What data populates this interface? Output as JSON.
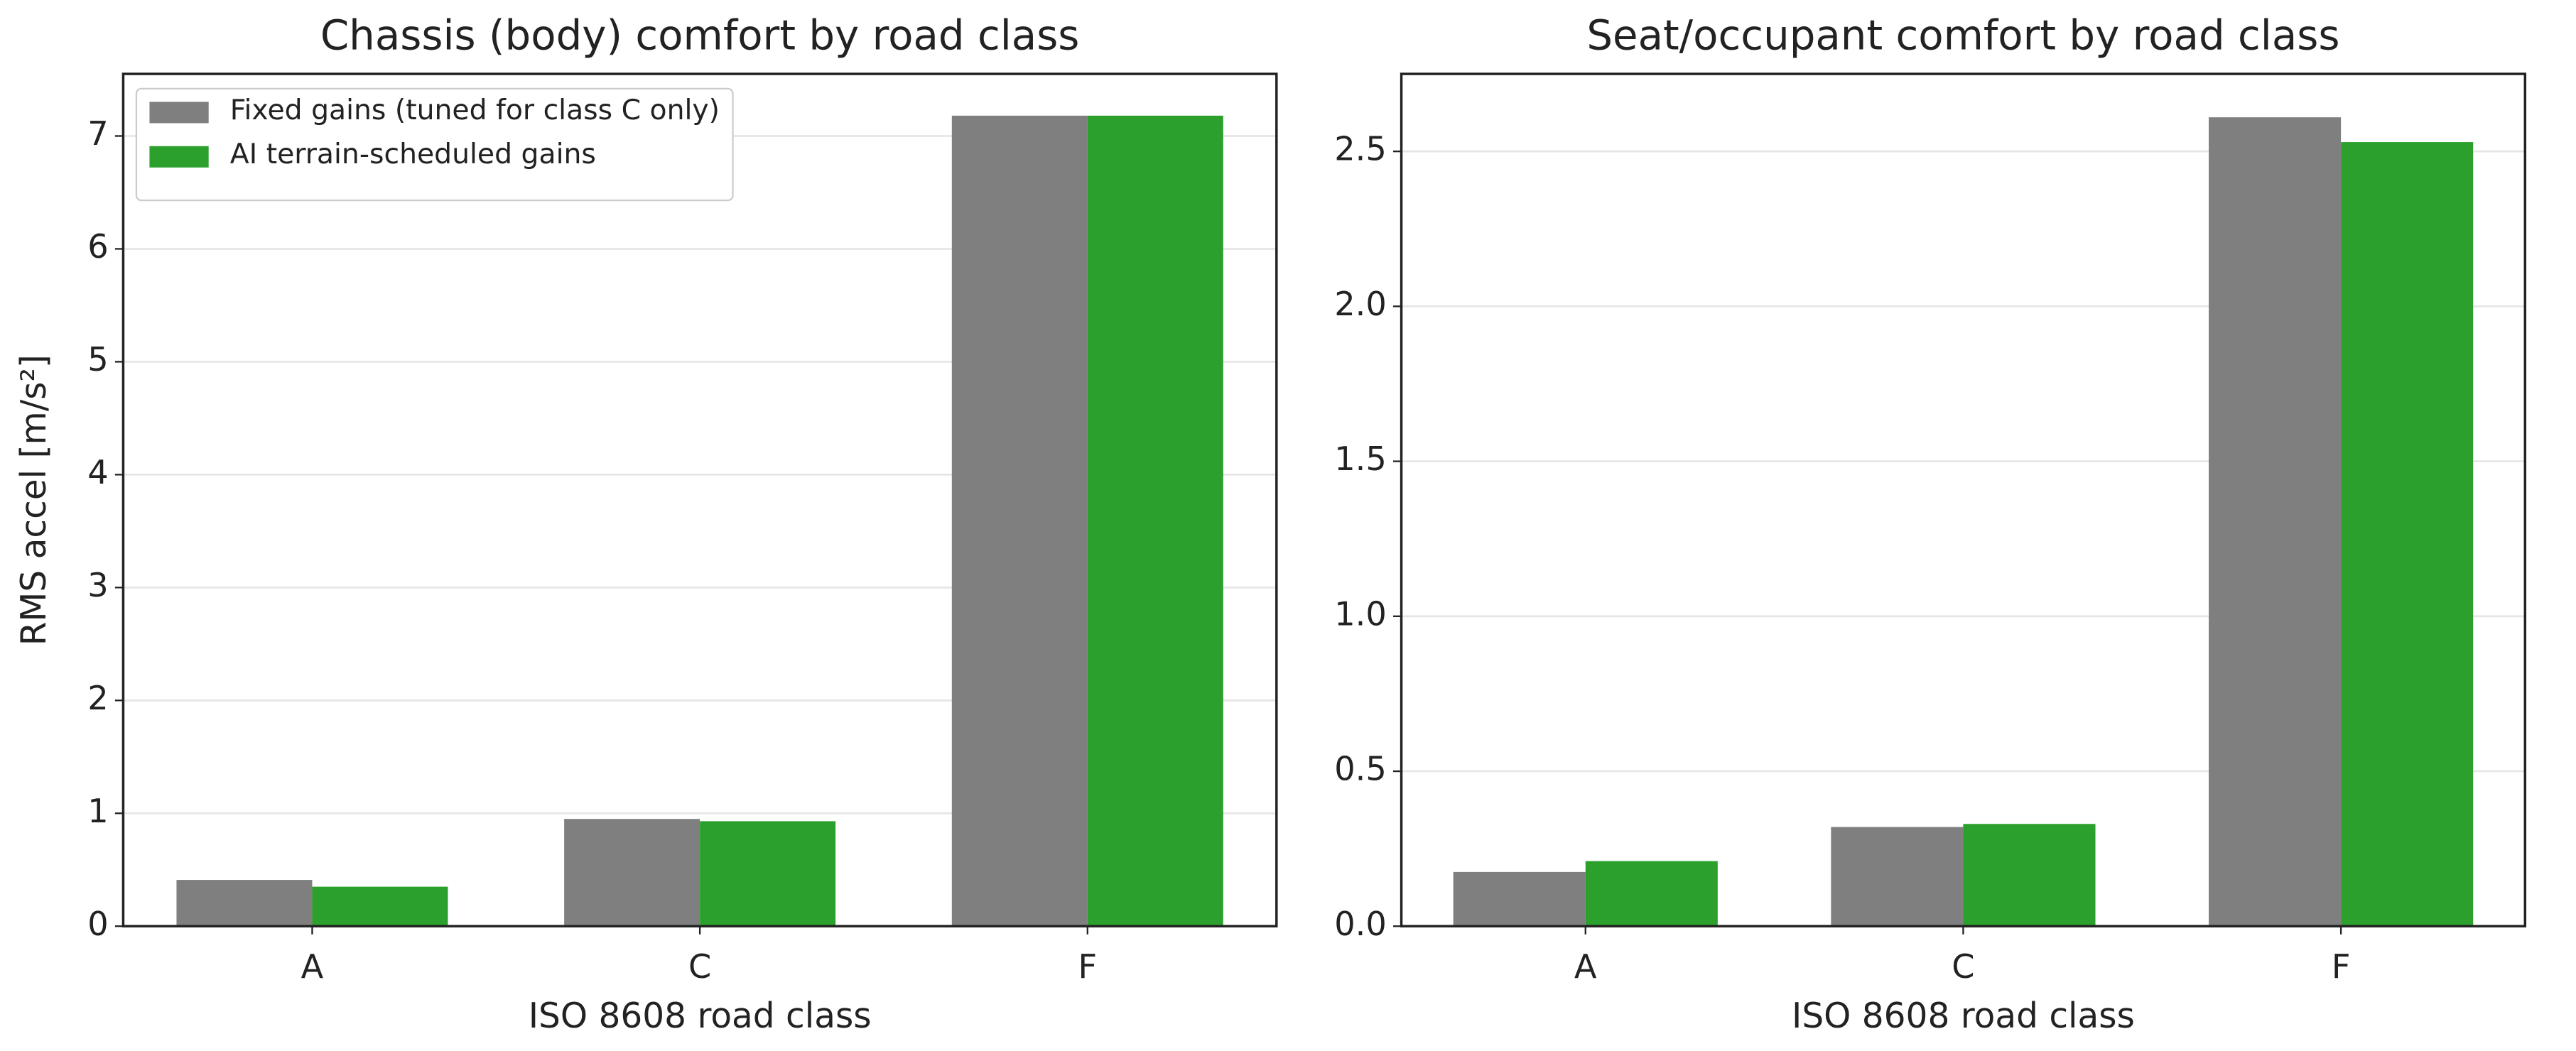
{
  "chart_data": [
    {
      "type": "bar",
      "title": "Chassis (body) comfort by road class",
      "xlabel": "ISO 8608 road class",
      "ylabel": "RMS accel [m/s²]",
      "categories": [
        "A",
        "C",
        "F"
      ],
      "series": [
        {
          "name": "Fixed gains (tuned for class C only)",
          "color": "#7f7f7f",
          "values": [
            0.41,
            0.95,
            7.18
          ]
        },
        {
          "name": "AI terrain-scheduled gains",
          "color": "#2ca02c",
          "values": [
            0.35,
            0.93,
            7.18
          ]
        }
      ],
      "ylim": [
        0,
        7.55
      ],
      "yticks": [
        0,
        1,
        2,
        3,
        4,
        5,
        6,
        7
      ],
      "grid": true,
      "legend": "upper left"
    },
    {
      "type": "bar",
      "title": "Seat/occupant comfort by road class",
      "xlabel": "ISO 8608 road class",
      "categories": [
        "A",
        "C",
        "F"
      ],
      "series": [
        {
          "name": "Fixed gains (tuned for class C only)",
          "color": "#7f7f7f",
          "values": [
            0.175,
            0.32,
            2.61
          ]
        },
        {
          "name": "AI terrain-scheduled gains",
          "color": "#2ca02c",
          "values": [
            0.21,
            0.33,
            2.53
          ]
        }
      ],
      "ylim": [
        0,
        2.75
      ],
      "yticks": [
        {
          "value": 0,
          "label": "0.0"
        },
        0.5,
        {
          "value": 1,
          "label": "1.0"
        },
        1.5,
        {
          "value": 2,
          "label": "2.0"
        },
        2.5
      ],
      "grid": true
    }
  ]
}
